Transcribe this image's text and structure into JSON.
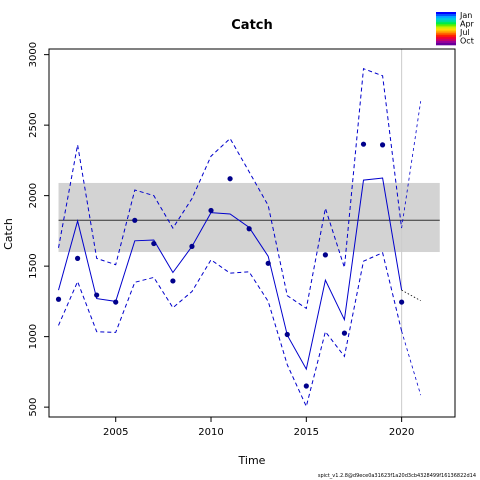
{
  "chart_data": {
    "type": "line",
    "title": "Catch",
    "xlabel": "Time",
    "ylabel": "Catch",
    "xlim": [
      2001.5,
      2022.8
    ],
    "ylim": [
      430,
      3040
    ],
    "xticks": [
      2005,
      2010,
      2015,
      2020
    ],
    "yticks": [
      500,
      1000,
      1500,
      2000,
      2500,
      3000
    ],
    "grid": false,
    "reference_year": 2020,
    "band": {
      "min": 1600,
      "max": 2090,
      "color": "#d3d3d3"
    },
    "mean_line": 1825,
    "series": [
      {
        "role": "median",
        "style": "solid",
        "x": [
          2002,
          2003,
          2004,
          2005,
          2006,
          2007,
          2008,
          2009,
          2010,
          2011,
          2012,
          2013,
          2014,
          2015,
          2016,
          2017,
          2018,
          2019,
          2020
        ],
        "values": [
          1330,
          1820,
          1270,
          1250,
          1680,
          1685,
          1455,
          1640,
          1880,
          1870,
          1775,
          1570,
          1010,
          770,
          1400,
          1120,
          2110,
          2125,
          1330
        ]
      },
      {
        "role": "upper",
        "style": "dashed",
        "x": [
          2002,
          2003,
          2004,
          2005,
          2006,
          2007,
          2008,
          2009,
          2010,
          2011,
          2012,
          2013,
          2014,
          2015,
          2016,
          2017,
          2018,
          2019,
          2020
        ],
        "values": [
          1630,
          2360,
          1555,
          1510,
          2040,
          2000,
          1770,
          1980,
          2280,
          2405,
          2170,
          1930,
          1290,
          1200,
          1910,
          1490,
          2900,
          2850,
          1770
        ]
      },
      {
        "role": "lower",
        "style": "dashed",
        "x": [
          2002,
          2003,
          2004,
          2005,
          2006,
          2007,
          2008,
          2009,
          2010,
          2011,
          2012,
          2013,
          2014,
          2015,
          2016,
          2017,
          2018,
          2019,
          2020
        ],
        "values": [
          1080,
          1390,
          1035,
          1030,
          1385,
          1420,
          1205,
          1320,
          1545,
          1450,
          1460,
          1250,
          800,
          505,
          1035,
          860,
          1535,
          1595,
          1040
        ]
      },
      {
        "role": "forecast-median",
        "style": "dotted",
        "x": [
          2020,
          2021
        ],
        "values": [
          1330,
          1255
        ]
      },
      {
        "role": "forecast-upper",
        "style": "dashed-thin",
        "x": [
          2020,
          2021
        ],
        "values": [
          1770,
          2670
        ]
      },
      {
        "role": "forecast-lower",
        "style": "dashed-thin",
        "x": [
          2020,
          2021
        ],
        "values": [
          1040,
          585
        ]
      },
      {
        "role": "observed",
        "style": "points",
        "x": [
          2002,
          2003,
          2004,
          2005,
          2006,
          2007,
          2008,
          2009,
          2010,
          2011,
          2012,
          2013,
          2014,
          2015,
          2016,
          2017,
          2018,
          2019,
          2020
        ],
        "values": [
          1265,
          1555,
          1295,
          1245,
          1825,
          1660,
          1395,
          1640,
          1895,
          2120,
          1765,
          1520,
          1015,
          650,
          1580,
          1025,
          2365,
          2360,
          1245
        ]
      }
    ],
    "colors": {
      "series": "#0000cc",
      "points": "#00008b",
      "mean": "#333333",
      "band": "#d3d3d3",
      "refline": "#cccccc"
    },
    "legend": {
      "placement": "top-right",
      "labels": [
        "Jan",
        "Apr",
        "Jul",
        "Oct"
      ],
      "colors": [
        "#0000ff",
        "#0055ff",
        "#00aaff",
        "#00ccdd",
        "#00dd99",
        "#00ee44",
        "#66ee00",
        "#ccee00",
        "#ffdd00",
        "#ffaa00",
        "#ff6600",
        "#ff2200",
        "#ee0033",
        "#cc0066",
        "#990099",
        "#660099"
      ]
    }
  },
  "footer": "spict_v1.2.8@d9ece0a31623f1a20d3cb4328499f16136822d14"
}
